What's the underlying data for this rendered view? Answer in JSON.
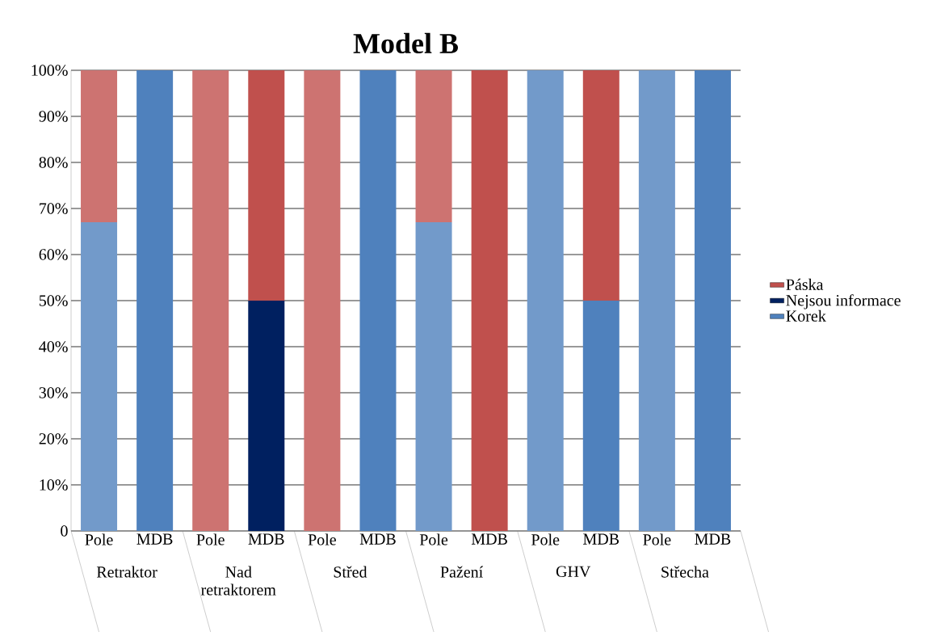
{
  "chart_data": {
    "type": "bar",
    "stacked": true,
    "title": "Model B",
    "categories": [
      "Pole",
      "MDB",
      "Pole",
      "MDB",
      "Pole",
      "MDB",
      "Pole",
      "MDB",
      "Pole",
      "MDB",
      "Pole",
      "MDB"
    ],
    "annotations": [
      "Retraktor",
      "Nad retraktorem",
      "Střed",
      "Pažení",
      "GHV",
      "Střecha"
    ],
    "series": [
      {
        "name": "Korek",
        "color": "#4f81bd",
        "colors": [
          "#729aca",
          "#4f81bd",
          "#729aca",
          "#4f81bd",
          "#729aca",
          "#4f81bd",
          "#729aca",
          "#4f81bd",
          "#729aca",
          "#4f81bd",
          "#729aca",
          "#4f81bd"
        ],
        "values": [
          67,
          100,
          0,
          0,
          0,
          100,
          67,
          0,
          100,
          50,
          100,
          100
        ]
      },
      {
        "name": "Nejsou informace",
        "color": "#002060",
        "colors": [
          "#002060",
          "#002060",
          "#002060",
          "#002060",
          "#002060",
          "#002060",
          "#002060",
          "#002060",
          "#002060",
          "#002060",
          "#002060",
          "#002060"
        ],
        "values": [
          0,
          0,
          0,
          50,
          0,
          0,
          0,
          0,
          0,
          0,
          0,
          0
        ]
      },
      {
        "name": "Páska",
        "color": "#c0504d",
        "colors": [
          "#cd7371",
          "#c0504d",
          "#cd7371",
          "#c0504d",
          "#cd7371",
          "#c0504d",
          "#cd7371",
          "#c0504d",
          "#cd7371",
          "#c0504d",
          "#cd7371",
          "#c0504d"
        ],
        "values": [
          33,
          0,
          100,
          50,
          100,
          0,
          33,
          100,
          0,
          50,
          0,
          0
        ]
      }
    ],
    "ylim": [
      0,
      100
    ],
    "yticks": [
      {
        "value": 0,
        "label": "0"
      },
      {
        "value": 10,
        "label": "10%"
      },
      {
        "value": 20,
        "label": "20%"
      },
      {
        "value": 30,
        "label": "30%"
      },
      {
        "value": 40,
        "label": "40%"
      },
      {
        "value": 50,
        "label": "50%"
      },
      {
        "value": 60,
        "label": "60%"
      },
      {
        "value": 70,
        "label": "70%"
      },
      {
        "value": 80,
        "label": "80%"
      },
      {
        "value": 90,
        "label": "90%"
      },
      {
        "value": 100,
        "label": "100%"
      }
    ],
    "grid": "y",
    "legend": "right"
  }
}
